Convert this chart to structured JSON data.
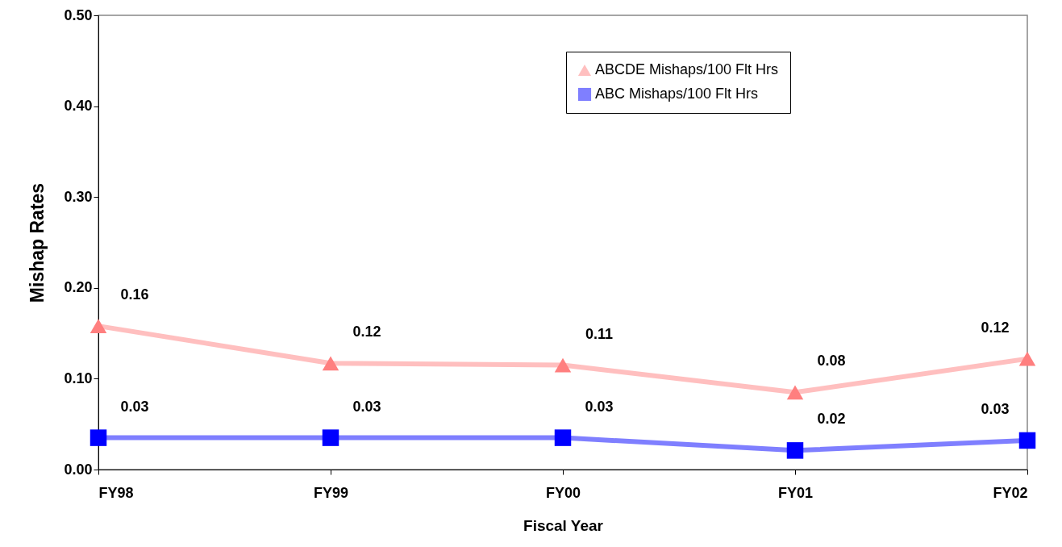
{
  "chart_data": {
    "type": "line",
    "xlabel": "Fiscal Year",
    "ylabel": "Mishap Rates",
    "categories": [
      "FY98",
      "FY99",
      "FY00",
      "FY01",
      "FY02"
    ],
    "ylim": [
      0,
      0.5
    ],
    "yticks": [
      {
        "value": 0,
        "label": "0.00"
      },
      {
        "value": 0.1,
        "label": "0.10"
      },
      {
        "value": 0.2,
        "label": "0.20"
      },
      {
        "value": 0.3,
        "label": "0.30"
      },
      {
        "value": 0.4,
        "label": "0.40"
      },
      {
        "value": 0.5,
        "label": "0.50"
      }
    ],
    "grid": false,
    "legend": "top right",
    "series": [
      {
        "name": "ABCDE Mishaps/100 Flt Hrs",
        "color": "#ff7f7f",
        "marker": "triangle",
        "values": [
          0.158,
          0.117,
          0.115,
          0.085,
          0.122
        ],
        "value_labels": [
          "0.16",
          "0.12",
          "0.11",
          "0.08",
          "0.12"
        ]
      },
      {
        "name": "ABC Mishaps/100 Flt Hrs",
        "color": "#0000ff",
        "marker": "square",
        "values": [
          0.035,
          0.035,
          0.035,
          0.021,
          0.032
        ],
        "value_labels": [
          "0.03",
          "0.03",
          "0.03",
          "0.02",
          "0.03"
        ]
      }
    ]
  }
}
